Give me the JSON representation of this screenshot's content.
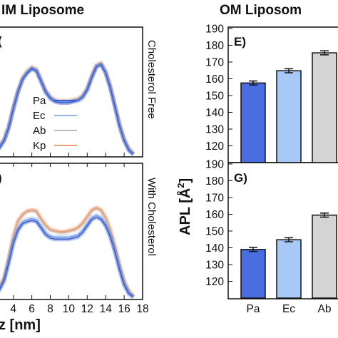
{
  "left": {
    "title": "IM Liposome",
    "xlabel": "z [nm]",
    "top_panel": {
      "letter": "(",
      "side_label": "Cholesterol Free"
    },
    "bottom_panel": {
      "letter": ")",
      "side_label": "With Cholesterol"
    },
    "legend": [
      {
        "name": "Pa",
        "color": "#3a5fd0"
      },
      {
        "name": "Ec",
        "color": "#8fb4ef"
      },
      {
        "name": "Ab",
        "color": "#bcbcbc"
      },
      {
        "name": "Kp",
        "color": "#f0a070"
      }
    ]
  },
  "right": {
    "title": "OM Liposom",
    "ylabel": "APL [Å",
    "ylabel_sup": "2",
    "ylabel_close": "]",
    "top_panel": {
      "letter": "E)"
    },
    "bottom_panel": {
      "letter": "G)"
    }
  },
  "chart_data": [
    {
      "type": "line",
      "panel": "left-top",
      "xlabel": "z [nm]",
      "xlim": [
        2.4,
        18
      ],
      "x_ticks": [
        4,
        6,
        8,
        10,
        12,
        14,
        16,
        18
      ],
      "x_tick_labels": [
        "4",
        "6",
        "8",
        "10",
        "12",
        "14",
        "16",
        "18"
      ],
      "x": [
        2.4,
        3.0,
        3.5,
        4.0,
        4.5,
        5.0,
        5.5,
        6.0,
        6.5,
        7.0,
        7.5,
        8.0,
        8.5,
        9.0,
        9.5,
        10.0,
        10.5,
        11.0,
        11.5,
        12.0,
        12.5,
        13.0,
        13.5,
        14.0,
        14.5,
        15.0,
        15.5,
        16.0,
        16.5,
        17.0
      ],
      "series": [
        {
          "name": "Pa",
          "color": "#3a5fd0",
          "values": [
            0.06,
            0.14,
            0.26,
            0.44,
            0.6,
            0.72,
            0.78,
            0.82,
            0.8,
            0.7,
            0.6,
            0.54,
            0.51,
            0.5,
            0.5,
            0.5,
            0.51,
            0.52,
            0.55,
            0.62,
            0.74,
            0.84,
            0.86,
            0.78,
            0.64,
            0.46,
            0.28,
            0.14,
            0.05,
            0.01
          ]
        },
        {
          "name": "Ec",
          "color": "#8fb4ef",
          "values": [
            0.07,
            0.15,
            0.27,
            0.45,
            0.61,
            0.73,
            0.79,
            0.83,
            0.81,
            0.71,
            0.61,
            0.55,
            0.52,
            0.51,
            0.51,
            0.51,
            0.52,
            0.53,
            0.56,
            0.63,
            0.75,
            0.85,
            0.87,
            0.79,
            0.65,
            0.47,
            0.29,
            0.15,
            0.06,
            0.01
          ]
        },
        {
          "name": "Ab",
          "color": "#bcbcbc",
          "values": [
            0.06,
            0.14,
            0.26,
            0.44,
            0.6,
            0.72,
            0.78,
            0.82,
            0.8,
            0.7,
            0.6,
            0.54,
            0.51,
            0.5,
            0.5,
            0.5,
            0.51,
            0.52,
            0.55,
            0.62,
            0.74,
            0.84,
            0.86,
            0.78,
            0.64,
            0.46,
            0.28,
            0.14,
            0.05,
            0.01
          ]
        },
        {
          "name": "Kp",
          "color": "#f0a070",
          "values": [
            0.07,
            0.16,
            0.28,
            0.46,
            0.62,
            0.74,
            0.8,
            0.84,
            0.82,
            0.72,
            0.62,
            0.56,
            0.53,
            0.52,
            0.52,
            0.52,
            0.53,
            0.54,
            0.57,
            0.64,
            0.76,
            0.86,
            0.88,
            0.8,
            0.66,
            0.48,
            0.3,
            0.16,
            0.07,
            0.02
          ]
        }
      ]
    },
    {
      "type": "line",
      "panel": "left-bottom",
      "xlabel": "z [nm]",
      "xlim": [
        2.4,
        18
      ],
      "x_ticks": [
        4,
        6,
        8,
        10,
        12,
        14,
        16,
        18
      ],
      "x_tick_labels": [
        "4",
        "6",
        "8",
        "10",
        "12",
        "14",
        "16",
        "18"
      ],
      "x": [
        2.4,
        3.0,
        3.5,
        4.0,
        4.5,
        5.0,
        5.5,
        6.0,
        6.5,
        7.0,
        7.5,
        8.0,
        8.5,
        9.0,
        9.5,
        10.0,
        10.5,
        11.0,
        11.5,
        12.0,
        12.5,
        13.0,
        13.5,
        14.0,
        14.5,
        15.0,
        15.5,
        16.0,
        16.5,
        17.0
      ],
      "series": [
        {
          "name": "Pa",
          "color": "#3a5fd0",
          "values": [
            0.06,
            0.16,
            0.32,
            0.5,
            0.62,
            0.68,
            0.7,
            0.71,
            0.7,
            0.64,
            0.58,
            0.55,
            0.54,
            0.54,
            0.54,
            0.54,
            0.55,
            0.56,
            0.6,
            0.66,
            0.72,
            0.74,
            0.72,
            0.66,
            0.56,
            0.42,
            0.26,
            0.12,
            0.04,
            0.01
          ]
        },
        {
          "name": "Ec",
          "color": "#8fb4ef",
          "values": [
            0.07,
            0.17,
            0.34,
            0.52,
            0.64,
            0.7,
            0.72,
            0.73,
            0.72,
            0.66,
            0.6,
            0.57,
            0.56,
            0.56,
            0.56,
            0.56,
            0.57,
            0.58,
            0.62,
            0.68,
            0.74,
            0.76,
            0.74,
            0.68,
            0.58,
            0.44,
            0.28,
            0.13,
            0.05,
            0.01
          ]
        },
        {
          "name": "Ab",
          "color": "#bcbcbc",
          "values": [
            0.07,
            0.18,
            0.36,
            0.56,
            0.7,
            0.76,
            0.79,
            0.8,
            0.79,
            0.72,
            0.66,
            0.62,
            0.61,
            0.6,
            0.6,
            0.61,
            0.62,
            0.64,
            0.68,
            0.74,
            0.8,
            0.82,
            0.8,
            0.73,
            0.62,
            0.47,
            0.3,
            0.15,
            0.06,
            0.01
          ]
        },
        {
          "name": "Kp",
          "color": "#f0a070",
          "values": [
            0.08,
            0.19,
            0.37,
            0.57,
            0.71,
            0.77,
            0.8,
            0.81,
            0.8,
            0.73,
            0.67,
            0.63,
            0.62,
            0.61,
            0.61,
            0.62,
            0.63,
            0.65,
            0.69,
            0.75,
            0.81,
            0.83,
            0.81,
            0.74,
            0.63,
            0.48,
            0.31,
            0.16,
            0.07,
            0.02
          ]
        }
      ]
    },
    {
      "type": "bar",
      "panel": "right-top",
      "categories": [
        "Pa",
        "Ec",
        "Ab"
      ],
      "values": [
        157.5,
        164.8,
        175.5
      ],
      "errors": [
        1.2,
        1.2,
        1.2
      ],
      "colors": [
        "#4a6ee0",
        "#a8c8f5",
        "#d4d4d4"
      ],
      "ylim": [
        110,
        190
      ],
      "y_ticks": [
        120,
        130,
        140,
        150,
        160,
        170,
        180,
        190
      ]
    },
    {
      "type": "bar",
      "panel": "right-bottom",
      "categories": [
        "Pa",
        "Ec",
        "Ab"
      ],
      "values": [
        139.0,
        144.8,
        159.5
      ],
      "errors": [
        1.2,
        1.2,
        1.2
      ],
      "colors": [
        "#4a6ee0",
        "#a8c8f5",
        "#d4d4d4"
      ],
      "ylim": [
        110,
        190
      ],
      "y_ticks": [
        120,
        130,
        140,
        150,
        160,
        170,
        180,
        190
      ]
    }
  ]
}
